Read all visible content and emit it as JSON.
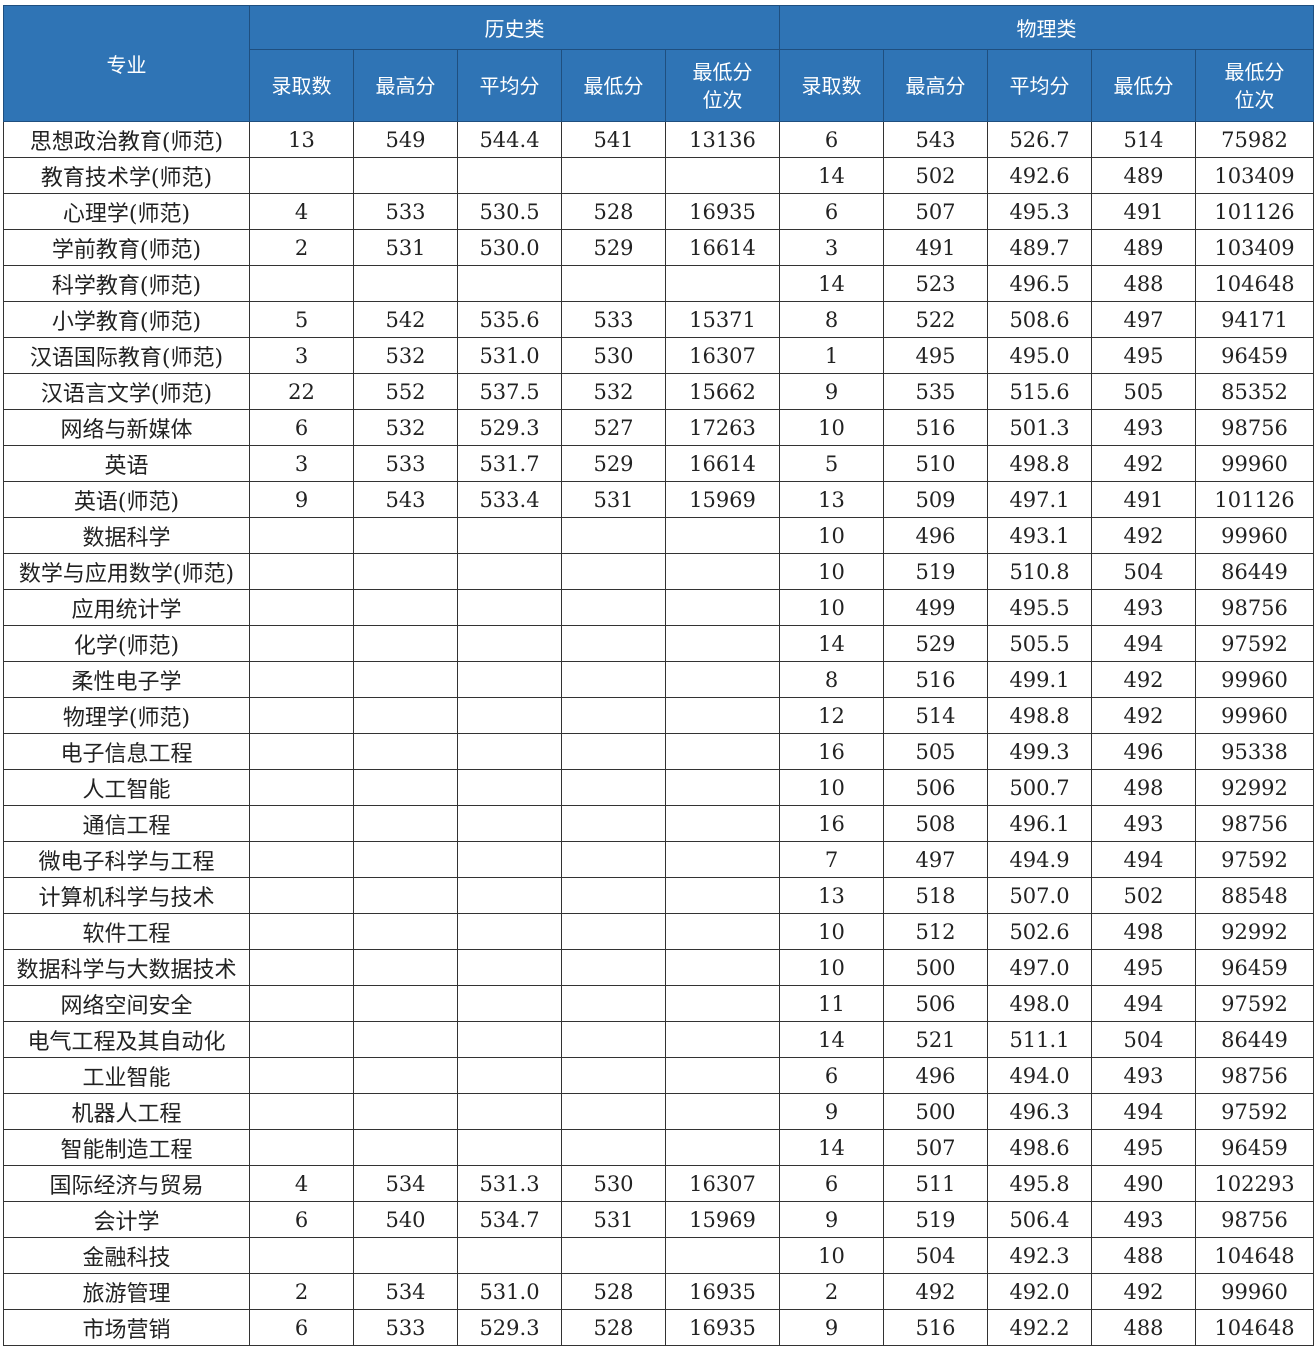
{
  "header": {
    "major": "专业",
    "group_history": "历史类",
    "group_physics": "物理类",
    "cols": [
      "录取数",
      "最高分",
      "平均分",
      "最低分",
      "最低分\n位次"
    ]
  },
  "rows": [
    [
      "思想政治教育(师范)",
      "13",
      "549",
      "544.4",
      "541",
      "13136",
      "6",
      "543",
      "526.7",
      "514",
      "75982"
    ],
    [
      "教育技术学(师范)",
      "",
      "",
      "",
      "",
      "",
      "14",
      "502",
      "492.6",
      "489",
      "103409"
    ],
    [
      "心理学(师范)",
      "4",
      "533",
      "530.5",
      "528",
      "16935",
      "6",
      "507",
      "495.3",
      "491",
      "101126"
    ],
    [
      "学前教育(师范)",
      "2",
      "531",
      "530.0",
      "529",
      "16614",
      "3",
      "491",
      "489.7",
      "489",
      "103409"
    ],
    [
      "科学教育(师范)",
      "",
      "",
      "",
      "",
      "",
      "14",
      "523",
      "496.5",
      "488",
      "104648"
    ],
    [
      "小学教育(师范)",
      "5",
      "542",
      "535.6",
      "533",
      "15371",
      "8",
      "522",
      "508.6",
      "497",
      "94171"
    ],
    [
      "汉语国际教育(师范)",
      "3",
      "532",
      "531.0",
      "530",
      "16307",
      "1",
      "495",
      "495.0",
      "495",
      "96459"
    ],
    [
      "汉语言文学(师范)",
      "22",
      "552",
      "537.5",
      "532",
      "15662",
      "9",
      "535",
      "515.6",
      "505",
      "85352"
    ],
    [
      "网络与新媒体",
      "6",
      "532",
      "529.3",
      "527",
      "17263",
      "10",
      "516",
      "501.3",
      "493",
      "98756"
    ],
    [
      "英语",
      "3",
      "533",
      "531.7",
      "529",
      "16614",
      "5",
      "510",
      "498.8",
      "492",
      "99960"
    ],
    [
      "英语(师范)",
      "9",
      "543",
      "533.4",
      "531",
      "15969",
      "13",
      "509",
      "497.1",
      "491",
      "101126"
    ],
    [
      "数据科学",
      "",
      "",
      "",
      "",
      "",
      "10",
      "496",
      "493.1",
      "492",
      "99960"
    ],
    [
      "数学与应用数学(师范)",
      "",
      "",
      "",
      "",
      "",
      "10",
      "519",
      "510.8",
      "504",
      "86449"
    ],
    [
      "应用统计学",
      "",
      "",
      "",
      "",
      "",
      "10",
      "499",
      "495.5",
      "493",
      "98756"
    ],
    [
      "化学(师范)",
      "",
      "",
      "",
      "",
      "",
      "14",
      "529",
      "505.5",
      "494",
      "97592"
    ],
    [
      "柔性电子学",
      "",
      "",
      "",
      "",
      "",
      "8",
      "516",
      "499.1",
      "492",
      "99960"
    ],
    [
      "物理学(师范)",
      "",
      "",
      "",
      "",
      "",
      "12",
      "514",
      "498.8",
      "492",
      "99960"
    ],
    [
      "电子信息工程",
      "",
      "",
      "",
      "",
      "",
      "16",
      "505",
      "499.3",
      "496",
      "95338"
    ],
    [
      "人工智能",
      "",
      "",
      "",
      "",
      "",
      "10",
      "506",
      "500.7",
      "498",
      "92992"
    ],
    [
      "通信工程",
      "",
      "",
      "",
      "",
      "",
      "16",
      "508",
      "496.1",
      "493",
      "98756"
    ],
    [
      "微电子科学与工程",
      "",
      "",
      "",
      "",
      "",
      "7",
      "497",
      "494.9",
      "494",
      "97592"
    ],
    [
      "计算机科学与技术",
      "",
      "",
      "",
      "",
      "",
      "13",
      "518",
      "507.0",
      "502",
      "88548"
    ],
    [
      "软件工程",
      "",
      "",
      "",
      "",
      "",
      "10",
      "512",
      "502.6",
      "498",
      "92992"
    ],
    [
      "数据科学与大数据技术",
      "",
      "",
      "",
      "",
      "",
      "10",
      "500",
      "497.0",
      "495",
      "96459"
    ],
    [
      "网络空间安全",
      "",
      "",
      "",
      "",
      "",
      "11",
      "506",
      "498.0",
      "494",
      "97592"
    ],
    [
      "电气工程及其自动化",
      "",
      "",
      "",
      "",
      "",
      "14",
      "521",
      "511.1",
      "504",
      "86449"
    ],
    [
      "工业智能",
      "",
      "",
      "",
      "",
      "",
      "6",
      "496",
      "494.0",
      "493",
      "98756"
    ],
    [
      "机器人工程",
      "",
      "",
      "",
      "",
      "",
      "9",
      "500",
      "496.3",
      "494",
      "97592"
    ],
    [
      "智能制造工程",
      "",
      "",
      "",
      "",
      "",
      "14",
      "507",
      "498.6",
      "495",
      "96459"
    ],
    [
      "国际经济与贸易",
      "4",
      "534",
      "531.3",
      "530",
      "16307",
      "6",
      "511",
      "495.8",
      "490",
      "102293"
    ],
    [
      "会计学",
      "6",
      "540",
      "534.7",
      "531",
      "15969",
      "9",
      "519",
      "506.4",
      "493",
      "98756"
    ],
    [
      "金融科技",
      "",
      "",
      "",
      "",
      "",
      "10",
      "504",
      "492.3",
      "488",
      "104648"
    ],
    [
      "旅游管理",
      "2",
      "534",
      "531.0",
      "528",
      "16935",
      "2",
      "492",
      "492.0",
      "492",
      "99960"
    ],
    [
      "市场营销",
      "6",
      "533",
      "529.3",
      "528",
      "16935",
      "9",
      "516",
      "492.2",
      "488",
      "104648"
    ]
  ],
  "colors": {
    "header_bg": "#2F74B5",
    "header_text": "#FFFFFF"
  }
}
